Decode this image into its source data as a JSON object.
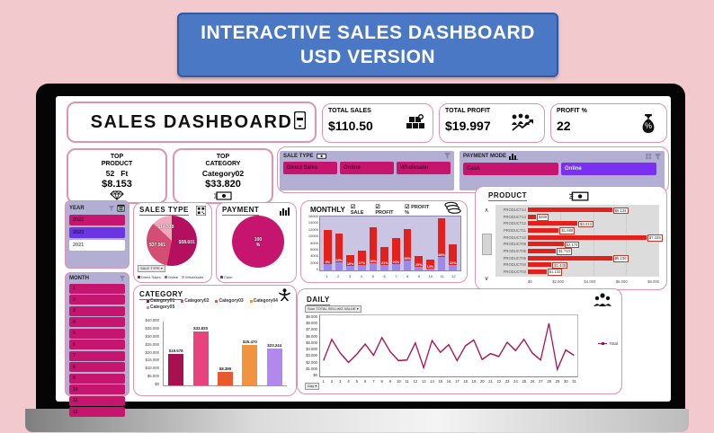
{
  "banner": {
    "line1": "INTERACTIVE SALES DASHBOARD",
    "line2": "USD VERSION"
  },
  "dashboard": {
    "title": "SALES DASHBOARD",
    "kpis": [
      {
        "label": "TOTAL SALES",
        "value": "$110.50",
        "icon": "boxes-icon"
      },
      {
        "label": "TOTAL PROFIT",
        "value": "$19.997",
        "icon": "team-growth-icon"
      },
      {
        "label": "PROFIT %",
        "value": "22",
        "icon": "money-bag-icon"
      }
    ],
    "top_product": {
      "label": "TOP\nPRODUCT",
      "name": "52   Ft",
      "value": "$8.153",
      "icon": "diamond-icon"
    },
    "top_category": {
      "label": "TOP\nCATEGORY",
      "name": "Category02",
      "value": "$33.820",
      "icon": "banknote-icon"
    }
  },
  "slicers": {
    "sale_type": {
      "label": "SALE TYPE",
      "buttons": [
        {
          "label": "Direct Sales",
          "color": "#c6156f",
          "text": "#4d0c2f"
        },
        {
          "label": "Online",
          "color": "#c6156f",
          "text": "#4d0c2f"
        },
        {
          "label": "Wholesaler",
          "color": "#c6156f",
          "text": "#4d0c2f"
        }
      ]
    },
    "payment_mode": {
      "label": "PAYMENT MODE",
      "buttons": [
        {
          "label": "Cash",
          "color": "#c6156f",
          "text": "#4d0c2f"
        },
        {
          "label": "Online",
          "color": "#7b2ff0",
          "text": "#d8f0f8"
        }
      ]
    },
    "year": {
      "label": "YEAR",
      "buttons": [
        {
          "label": "2022",
          "color": "#c6156f",
          "text": "#4d0c2f"
        },
        {
          "label": "2023",
          "color": "#6a35e4",
          "text": "#2a1060"
        },
        {
          "label": "2021",
          "color": "#ffffff",
          "text": "#666666"
        }
      ]
    },
    "month": {
      "label": "MONTH",
      "buttons": [
        "1",
        "2",
        "3",
        "4",
        "5",
        "6",
        "7",
        "8",
        "9",
        "10",
        "11",
        "12"
      ]
    }
  },
  "charts": {
    "sales_type": {
      "title": "SALES TYPE",
      "type": "pie",
      "field_button": "SALE TYPE",
      "slices": [
        {
          "label": "$58.601",
          "value": 58.601,
          "color": "#b51060"
        },
        {
          "label": "$37.561",
          "value": 37.561,
          "color": "#d44d72"
        },
        {
          "label": "$14.339",
          "value": 14.339,
          "color": "#f0a8bc"
        }
      ],
      "legend": [
        "Direct Sales",
        "Online",
        "Wholesaler"
      ]
    },
    "payment": {
      "title": "PAYMENT",
      "type": "pie",
      "slices": [
        {
          "label": "100\n%",
          "value": 100,
          "color": "#c6156f"
        }
      ],
      "legend": [
        "Cash"
      ]
    },
    "monthly": {
      "title": "MONTHLY",
      "type": "bar",
      "checkboxes": [
        "SALE",
        "PROFIT",
        "PROFIT %"
      ],
      "categories": [
        "1",
        "2",
        "3",
        "4",
        "5",
        "6",
        "7",
        "8",
        "9",
        "10",
        "11",
        "12"
      ],
      "series": [
        {
          "name": "SALE",
          "color": "#e3201b",
          "values": [
            12000,
            11000,
            4600,
            5800,
            12900,
            7000,
            9600,
            12300,
            4400,
            3300,
            15500,
            7800
          ]
        },
        {
          "name": "PROFIT",
          "color": "#9d8ae8",
          "values": [
            1800,
            2300,
            1300,
            1700,
            2100,
            1500,
            1900,
            3000,
            1000,
            600,
            3900,
            1500
          ]
        }
      ],
      "bar_labels": [
        "9%",
        "23%",
        "19%",
        "27%",
        "16%",
        "21%",
        "20%",
        "29%",
        "25%",
        "13%",
        "28%",
        "22%"
      ],
      "y_ticks": [
        "16000",
        "14000",
        "12000",
        "10000",
        "8000",
        "6000",
        "4000",
        "2000",
        "0"
      ],
      "ylim": [
        0,
        16000
      ]
    },
    "product": {
      "title": "PRODUCT",
      "type": "hbar",
      "bar_color": "#e3201b",
      "items": [
        {
          "name": "PRODUCT14",
          "label": "$5.134",
          "value": 5134
        },
        {
          "name": "PRODUCT13",
          "label": "$488",
          "value": 488
        },
        {
          "name": "PRODUCT12",
          "label": "$3.013",
          "value": 3013
        },
        {
          "name": "PRODUCT11",
          "label": "$1.888",
          "value": 1888
        },
        {
          "name": "PRODUCT10",
          "label": "$7.228",
          "value": 7228
        },
        {
          "name": "PRODUCT08",
          "label": "$2.174",
          "value": 2174
        },
        {
          "name": "PRODUCT06",
          "label": "$1.710",
          "value": 1710
        },
        {
          "name": "PRODUCT05",
          "label": "$5.136",
          "value": 5136
        },
        {
          "name": "PRODUCT04",
          "label": "$1.445",
          "value": 1445
        },
        {
          "name": "PRODUCT03",
          "label": "$1.133",
          "value": 1133
        }
      ],
      "x_ticks": [
        "$0",
        "$2.000",
        "$4.000",
        "$6.000",
        "$8.000"
      ],
      "xlim": [
        0,
        8000
      ]
    },
    "category": {
      "title": "CATEGORY",
      "type": "column",
      "legend": [
        {
          "name": "Category01",
          "color": "#a81150"
        },
        {
          "name": "Category02",
          "color": "#e8437e"
        },
        {
          "name": "Category03",
          "color": "#e85a2e"
        },
        {
          "name": "Category04",
          "color": "#f09440"
        },
        {
          "name": "Category05",
          "color": "#b388ec"
        }
      ],
      "values": [
        19578,
        33820,
        8389,
        25470,
        23244
      ],
      "labels": [
        "$19.578",
        "$33.820",
        "$8.389",
        "$25.470",
        "$23.244"
      ],
      "y_ticks": [
        "$40.000",
        "$35.000",
        "$30.000",
        "$25.000",
        "$20.000",
        "$15.000",
        "$10.000",
        "$5.000",
        "$0"
      ],
      "ylim": [
        0,
        40000
      ]
    },
    "daily": {
      "title": "DAILY",
      "type": "line",
      "line_color": "#a81355",
      "field_button": "Sum TOTAL SELLING VALUE",
      "axis_button": "Day",
      "legend": "Total",
      "x": [
        "1",
        "2",
        "3",
        "4",
        "5",
        "6",
        "7",
        "8",
        "9",
        "10",
        "11",
        "12",
        "13",
        "14",
        "15",
        "16",
        "17",
        "18",
        "19",
        "20",
        "21",
        "22",
        "23",
        "24",
        "25",
        "26",
        "27",
        "28",
        "29",
        "30",
        "31"
      ],
      "values": [
        2000,
        5600,
        3300,
        1700,
        3100,
        4800,
        2900,
        5900,
        3500,
        2000,
        2100,
        5000,
        800,
        5400,
        3400,
        4700,
        2000,
        4500,
        5500,
        2200,
        3200,
        2700,
        5100,
        3700,
        5600,
        3300,
        2100,
        8300,
        500,
        3800,
        2900
      ],
      "y_ticks": [
        "$9.000",
        "$8.000",
        "$7.000",
        "$6.000",
        "$5.000",
        "$4.000",
        "$3.000",
        "$2.000",
        "$1.000",
        "$0"
      ],
      "ylim": [
        0,
        9000
      ]
    }
  }
}
